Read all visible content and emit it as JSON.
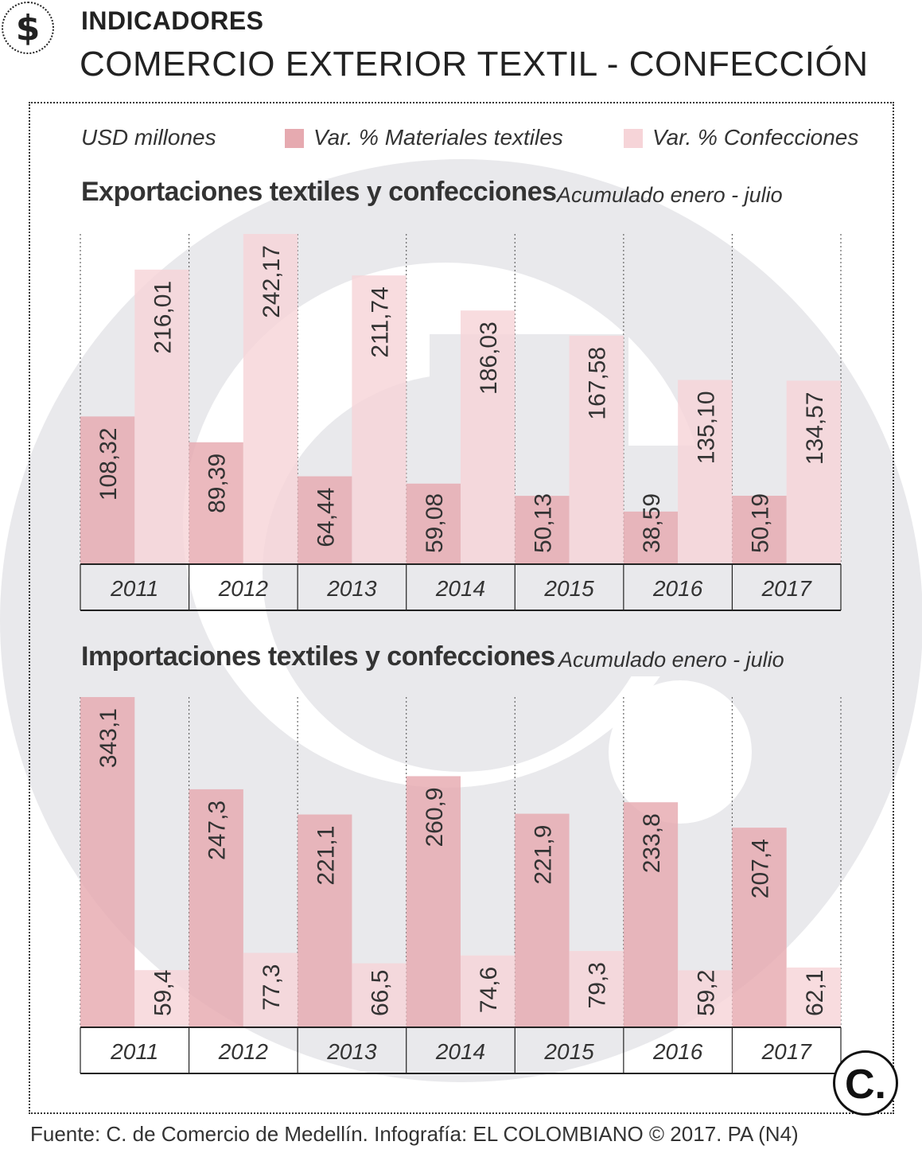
{
  "header": {
    "section": "INDICADORES",
    "title": "COMERCIO EXTERIOR TEXTIL - CONFECCIÓN",
    "icon": "dollar-icon"
  },
  "legend": {
    "unit": "USD millones",
    "series_a": "Var. % Materiales textiles",
    "series_b": "Var. % Confecciones"
  },
  "colors": {
    "materiales": "#e6aab0",
    "confecciones": "#f6d4d8",
    "watermark": "#e9e9ec",
    "text": "#222222"
  },
  "chart_data": [
    {
      "type": "bar",
      "title": "Exportaciones textiles y confecciones",
      "subtitle": "Acumulado enero - julio",
      "ylabel": "USD millones",
      "categories": [
        "2011",
        "2012",
        "2013",
        "2014",
        "2015",
        "2016",
        "2017"
      ],
      "series": [
        {
          "name": "Var. % Materiales textiles",
          "values": [
            108.32,
            89.39,
            64.44,
            59.08,
            50.13,
            38.59,
            50.19
          ],
          "labels": [
            "108,32",
            "89,39",
            "64,44",
            "59,08",
            "50,13",
            "38,59",
            "50,19"
          ]
        },
        {
          "name": "Var. % Confecciones",
          "values": [
            216.01,
            242.17,
            211.74,
            186.03,
            167.58,
            135.1,
            134.57
          ],
          "labels": [
            "216,01",
            "242,17",
            "211,74",
            "186,03",
            "167,58",
            "135,10",
            "134,57"
          ]
        }
      ],
      "ylim": [
        0,
        242.17
      ]
    },
    {
      "type": "bar",
      "title": "Importaciones textiles y confecciones",
      "subtitle": "Acumulado enero - julio",
      "ylabel": "USD millones",
      "categories": [
        "2011",
        "2012",
        "2013",
        "2014",
        "2015",
        "2016",
        "2017"
      ],
      "series": [
        {
          "name": "Var. % Materiales textiles",
          "values": [
            343.1,
            247.3,
            221.1,
            260.9,
            221.9,
            233.8,
            207.4
          ],
          "labels": [
            "343,1",
            "247,3",
            "221,1",
            "260,9",
            "221,9",
            "233,8",
            "207,4"
          ]
        },
        {
          "name": "Var. % Confecciones",
          "values": [
            59.4,
            77.3,
            66.5,
            74.6,
            79.3,
            59.2,
            62.1
          ],
          "labels": [
            "59,4",
            "77,3",
            "66,5",
            "74,6",
            "79,3",
            "59,2",
            "62,1"
          ]
        }
      ],
      "ylim": [
        0,
        343.1
      ]
    }
  ],
  "footer": {
    "source": "Fuente: C. de Comercio de Medellín. Infografía: EL COLOMBIANO © 2017. PA (N4)",
    "logo": "C."
  }
}
